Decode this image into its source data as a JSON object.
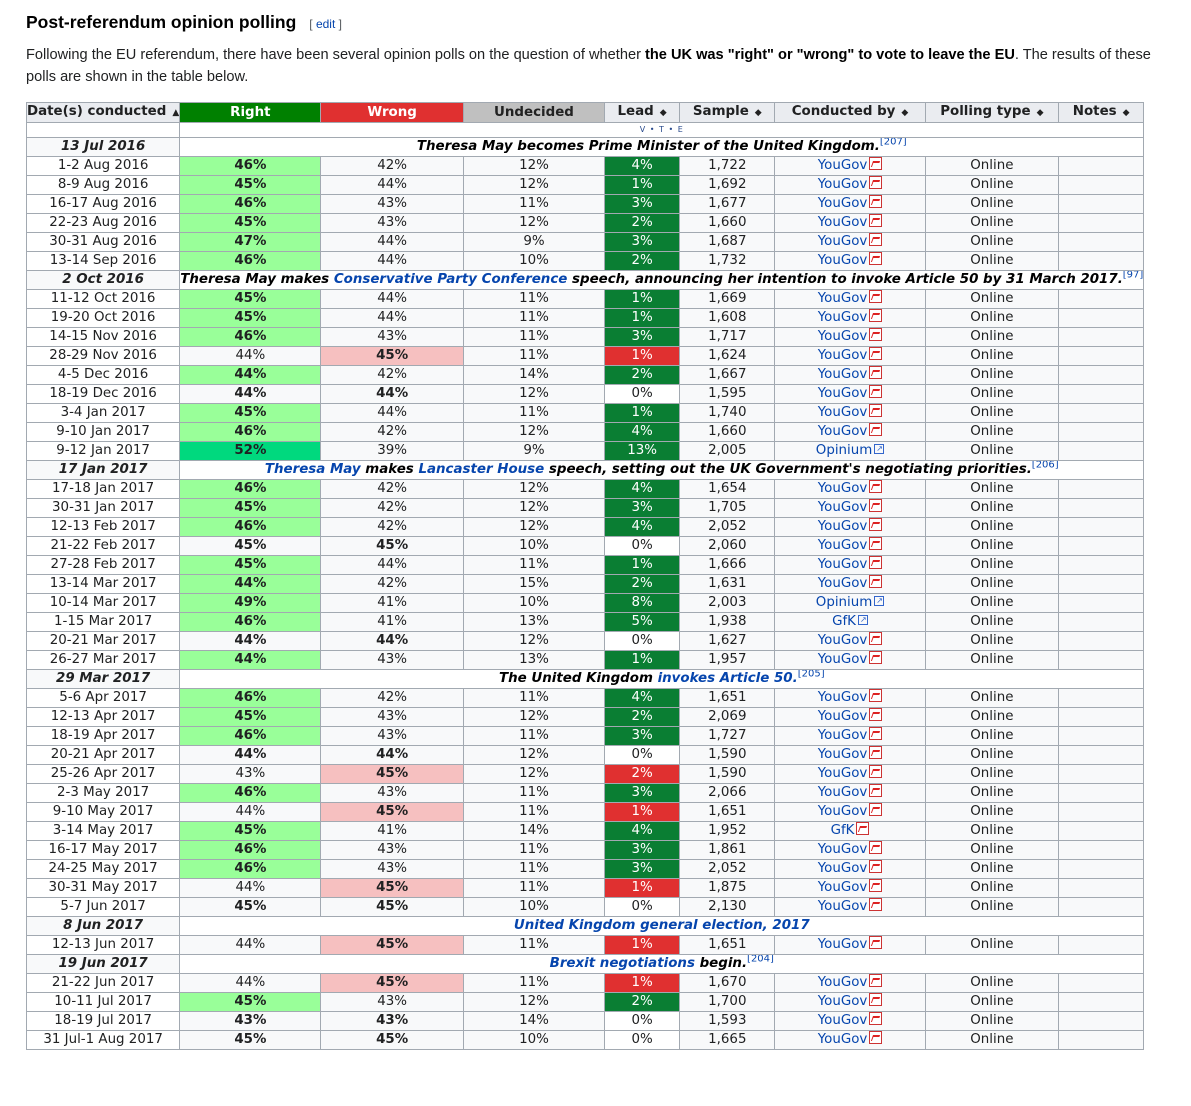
{
  "section": {
    "title": "Post-referendum opinion polling",
    "edit_label": "edit",
    "intro_pre": "Following the EU referendum, there have been several opinion polls on the question of whether ",
    "intro_bold": "the UK was \"right\" or \"wrong\" to vote to leave the EU",
    "intro_post": ". The results of these polls are shown in the table below."
  },
  "table": {
    "headers": [
      "Date(s) conducted",
      "Right",
      "Wrong",
      "Undecided",
      "Lead",
      "Sample",
      "Conducted by",
      "Polling type",
      "Notes"
    ],
    "vte": "V • T • E",
    "colors": {
      "right": "#008000",
      "wrong": "#e03030",
      "undecided": "#c0c0c0",
      "light_green": "#99ff99",
      "bright_green": "#00d97e",
      "pink": "#f6c0c0",
      "lead_green": "#0a7e33",
      "lead_red": "#e03030"
    },
    "rows": [
      {
        "type": "event",
        "date": "13 Jul 2016",
        "parts": [
          [
            "t",
            "Theresa May becomes Prime Minister of the United Kingdom."
          ],
          [
            "r",
            "[207]"
          ]
        ]
      },
      {
        "type": "poll",
        "date": "1-2 Aug 2016",
        "right": "46%",
        "wrong": "42%",
        "undecided": "12%",
        "lead": "4%",
        "sample": "1,722",
        "by": "YouGov",
        "icon": "pdf",
        "ptype": "Online",
        "notes": "",
        "rc": "lg",
        "wc": "",
        "lc": "lw"
      },
      {
        "type": "poll",
        "date": "8-9 Aug 2016",
        "right": "45%",
        "wrong": "44%",
        "undecided": "12%",
        "lead": "1%",
        "sample": "1,692",
        "by": "YouGov",
        "icon": "pdf",
        "ptype": "Online",
        "notes": "",
        "rc": "lg",
        "wc": "",
        "lc": "lw"
      },
      {
        "type": "poll",
        "date": "16-17 Aug 2016",
        "right": "46%",
        "wrong": "43%",
        "undecided": "11%",
        "lead": "3%",
        "sample": "1,677",
        "by": "YouGov",
        "icon": "pdf",
        "ptype": "Online",
        "notes": "",
        "rc": "lg",
        "wc": "",
        "lc": "lw"
      },
      {
        "type": "poll",
        "date": "22-23 Aug 2016",
        "right": "45%",
        "wrong": "43%",
        "undecided": "12%",
        "lead": "2%",
        "sample": "1,660",
        "by": "YouGov",
        "icon": "pdf",
        "ptype": "Online",
        "notes": "",
        "rc": "lg",
        "wc": "",
        "lc": "lw"
      },
      {
        "type": "poll",
        "date": "30-31 Aug 2016",
        "right": "47%",
        "wrong": "44%",
        "undecided": "9%",
        "lead": "3%",
        "sample": "1,687",
        "by": "YouGov",
        "icon": "pdf",
        "ptype": "Online",
        "notes": "",
        "rc": "lg",
        "wc": "",
        "lc": "lw"
      },
      {
        "type": "poll",
        "date": "13-14 Sep 2016",
        "right": "46%",
        "wrong": "44%",
        "undecided": "10%",
        "lead": "2%",
        "sample": "1,732",
        "by": "YouGov",
        "icon": "pdf",
        "ptype": "Online",
        "notes": "",
        "rc": "lg",
        "wc": "",
        "lc": "lw"
      },
      {
        "type": "event",
        "tall": true,
        "date": "2 Oct 2016",
        "parts": [
          [
            "t",
            "Theresa May makes "
          ],
          [
            "l",
            "Conservative Party Conference"
          ],
          [
            "t",
            " speech, announcing her intention to invoke Article 50 by 31 March 2017."
          ],
          [
            "r",
            "[97]"
          ]
        ]
      },
      {
        "type": "poll",
        "date": "11-12 Oct 2016",
        "right": "45%",
        "wrong": "44%",
        "undecided": "11%",
        "lead": "1%",
        "sample": "1,669",
        "by": "YouGov",
        "icon": "pdf",
        "ptype": "Online",
        "notes": "",
        "rc": "lg",
        "wc": "",
        "lc": "lw"
      },
      {
        "type": "poll",
        "date": "19-20 Oct 2016",
        "right": "45%",
        "wrong": "44%",
        "undecided": "11%",
        "lead": "1%",
        "sample": "1,608",
        "by": "YouGov",
        "icon": "pdf",
        "ptype": "Online",
        "notes": "",
        "rc": "lg",
        "wc": "",
        "lc": "lw"
      },
      {
        "type": "poll",
        "date": "14-15 Nov 2016",
        "right": "46%",
        "wrong": "43%",
        "undecided": "11%",
        "lead": "3%",
        "sample": "1,717",
        "by": "YouGov",
        "icon": "pdf",
        "ptype": "Online",
        "notes": "",
        "rc": "lg",
        "wc": "",
        "lc": "lw"
      },
      {
        "type": "poll",
        "date": "28-29 Nov 2016",
        "right": "44%",
        "wrong": "45%",
        "undecided": "11%",
        "lead": "1%",
        "sample": "1,624",
        "by": "YouGov",
        "icon": "pdf",
        "ptype": "Online",
        "notes": "",
        "rc": "",
        "wc": "pk",
        "lc": "lr"
      },
      {
        "type": "poll",
        "date": "4-5 Dec 2016",
        "right": "44%",
        "wrong": "42%",
        "undecided": "14%",
        "lead": "2%",
        "sample": "1,667",
        "by": "YouGov",
        "icon": "pdf",
        "ptype": "Online",
        "notes": "",
        "rc": "lg",
        "wc": "",
        "lc": "lw"
      },
      {
        "type": "poll",
        "date": "18-19 Dec 2016",
        "right": "44%",
        "wrong": "44%",
        "undecided": "12%",
        "lead": "0%",
        "sample": "1,595",
        "by": "YouGov",
        "icon": "pdf",
        "ptype": "Online",
        "notes": "",
        "rc": "bd",
        "wc": "bd",
        "lc": "ln"
      },
      {
        "type": "poll",
        "date": "3-4 Jan 2017",
        "right": "45%",
        "wrong": "44%",
        "undecided": "11%",
        "lead": "1%",
        "sample": "1,740",
        "by": "YouGov",
        "icon": "pdf",
        "ptype": "Online",
        "notes": "",
        "rc": "lg",
        "wc": "",
        "lc": "lw"
      },
      {
        "type": "poll",
        "date": "9-10 Jan 2017",
        "right": "46%",
        "wrong": "42%",
        "undecided": "12%",
        "lead": "4%",
        "sample": "1,660",
        "by": "YouGov",
        "icon": "pdf",
        "ptype": "Online",
        "notes": "",
        "rc": "lg",
        "wc": "",
        "lc": "lw"
      },
      {
        "type": "poll",
        "date": "9-12 Jan 2017",
        "right": "52%",
        "wrong": "39%",
        "undecided": "9%",
        "lead": "13%",
        "sample": "2,005",
        "by": "Opinium",
        "icon": "ext",
        "ptype": "Online",
        "notes": "",
        "rc": "dg",
        "wc": "",
        "lc": "lw"
      },
      {
        "type": "event",
        "date": "17 Jan 2017",
        "parts": [
          [
            "l",
            "Theresa May"
          ],
          [
            "t",
            " makes "
          ],
          [
            "l",
            "Lancaster House"
          ],
          [
            "t",
            " speech, setting out the UK Government's negotiating priorities."
          ],
          [
            "r",
            "[206]"
          ]
        ]
      },
      {
        "type": "poll",
        "date": "17-18 Jan 2017",
        "right": "46%",
        "wrong": "42%",
        "undecided": "12%",
        "lead": "4%",
        "sample": "1,654",
        "by": "YouGov",
        "icon": "pdf",
        "ptype": "Online",
        "notes": "",
        "rc": "lg",
        "wc": "",
        "lc": "lw"
      },
      {
        "type": "poll",
        "date": "30-31 Jan 2017",
        "right": "45%",
        "wrong": "42%",
        "undecided": "12%",
        "lead": "3%",
        "sample": "1,705",
        "by": "YouGov",
        "icon": "pdf",
        "ptype": "Online",
        "notes": "",
        "rc": "lg",
        "wc": "",
        "lc": "lw"
      },
      {
        "type": "poll",
        "date": "12-13 Feb 2017",
        "right": "46%",
        "wrong": "42%",
        "undecided": "12%",
        "lead": "4%",
        "sample": "2,052",
        "by": "YouGov",
        "icon": "pdf",
        "ptype": "Online",
        "notes": "",
        "rc": "lg",
        "wc": "",
        "lc": "lw"
      },
      {
        "type": "poll",
        "date": "21-22 Feb 2017",
        "right": "45%",
        "wrong": "45%",
        "undecided": "10%",
        "lead": "0%",
        "sample": "2,060",
        "by": "YouGov",
        "icon": "pdf",
        "ptype": "Online",
        "notes": "",
        "rc": "bd",
        "wc": "bd",
        "lc": "ln"
      },
      {
        "type": "poll",
        "date": "27-28 Feb 2017",
        "right": "45%",
        "wrong": "44%",
        "undecided": "11%",
        "lead": "1%",
        "sample": "1,666",
        "by": "YouGov",
        "icon": "pdf",
        "ptype": "Online",
        "notes": "",
        "rc": "lg",
        "wc": "",
        "lc": "lw"
      },
      {
        "type": "poll",
        "date": "13-14 Mar 2017",
        "right": "44%",
        "wrong": "42%",
        "undecided": "15%",
        "lead": "2%",
        "sample": "1,631",
        "by": "YouGov",
        "icon": "pdf",
        "ptype": "Online",
        "notes": "",
        "rc": "lg",
        "wc": "",
        "lc": "lw"
      },
      {
        "type": "poll",
        "date": "10-14 Mar 2017",
        "right": "49%",
        "wrong": "41%",
        "undecided": "10%",
        "lead": "8%",
        "sample": "2,003",
        "by": "Opinium",
        "icon": "ext",
        "ptype": "Online",
        "notes": "",
        "rc": "lg",
        "wc": "",
        "lc": "lw"
      },
      {
        "type": "poll",
        "date": "1-15 Mar 2017",
        "right": "46%",
        "wrong": "41%",
        "undecided": "13%",
        "lead": "5%",
        "sample": "1,938",
        "by": "GfK",
        "icon": "ext",
        "ptype": "Online",
        "notes": "",
        "rc": "lg",
        "wc": "",
        "lc": "lw"
      },
      {
        "type": "poll",
        "date": "20-21 Mar 2017",
        "right": "44%",
        "wrong": "44%",
        "undecided": "12%",
        "lead": "0%",
        "sample": "1,627",
        "by": "YouGov",
        "icon": "pdf",
        "ptype": "Online",
        "notes": "",
        "rc": "bd",
        "wc": "bd",
        "lc": "ln"
      },
      {
        "type": "poll",
        "date": "26-27 Mar 2017",
        "right": "44%",
        "wrong": "43%",
        "undecided": "13%",
        "lead": "1%",
        "sample": "1,957",
        "by": "YouGov",
        "icon": "pdf",
        "ptype": "Online",
        "notes": "",
        "rc": "lg",
        "wc": "",
        "lc": "lw"
      },
      {
        "type": "event",
        "date": "29 Mar 2017",
        "parts": [
          [
            "t",
            "The United Kingdom "
          ],
          [
            "l",
            "invokes Article 50."
          ],
          [
            "r",
            "[205]"
          ]
        ]
      },
      {
        "type": "poll",
        "date": "5-6 Apr 2017",
        "right": "46%",
        "wrong": "42%",
        "undecided": "11%",
        "lead": "4%",
        "sample": "1,651",
        "by": "YouGov",
        "icon": "pdf",
        "ptype": "Online",
        "notes": "",
        "rc": "lg",
        "wc": "",
        "lc": "lw"
      },
      {
        "type": "poll",
        "date": "12-13 Apr 2017",
        "right": "45%",
        "wrong": "43%",
        "undecided": "12%",
        "lead": "2%",
        "sample": "2,069",
        "by": "YouGov",
        "icon": "pdf",
        "ptype": "Online",
        "notes": "",
        "rc": "lg",
        "wc": "",
        "lc": "lw"
      },
      {
        "type": "poll",
        "date": "18-19 Apr 2017",
        "right": "46%",
        "wrong": "43%",
        "undecided": "11%",
        "lead": "3%",
        "sample": "1,727",
        "by": "YouGov",
        "icon": "pdf",
        "ptype": "Online",
        "notes": "",
        "rc": "lg",
        "wc": "",
        "lc": "lw"
      },
      {
        "type": "poll",
        "date": "20-21 Apr 2017",
        "right": "44%",
        "wrong": "44%",
        "undecided": "12%",
        "lead": "0%",
        "sample": "1,590",
        "by": "YouGov",
        "icon": "pdf",
        "ptype": "Online",
        "notes": "",
        "rc": "bd",
        "wc": "bd",
        "lc": "ln"
      },
      {
        "type": "poll",
        "date": "25-26 Apr 2017",
        "right": "43%",
        "wrong": "45%",
        "undecided": "12%",
        "lead": "2%",
        "sample": "1,590",
        "by": "YouGov",
        "icon": "pdf",
        "ptype": "Online",
        "notes": "",
        "rc": "",
        "wc": "pk",
        "lc": "lr"
      },
      {
        "type": "poll",
        "date": "2-3 May 2017",
        "right": "46%",
        "wrong": "43%",
        "undecided": "11%",
        "lead": "3%",
        "sample": "2,066",
        "by": "YouGov",
        "icon": "pdf",
        "ptype": "Online",
        "notes": "",
        "rc": "lg",
        "wc": "",
        "lc": "lw"
      },
      {
        "type": "poll",
        "date": "9-10 May 2017",
        "right": "44%",
        "wrong": "45%",
        "undecided": "11%",
        "lead": "1%",
        "sample": "1,651",
        "by": "YouGov",
        "icon": "pdf",
        "ptype": "Online",
        "notes": "",
        "rc": "",
        "wc": "pk",
        "lc": "lr"
      },
      {
        "type": "poll",
        "date": "3-14 May 2017",
        "right": "45%",
        "wrong": "41%",
        "undecided": "14%",
        "lead": "4%",
        "sample": "1,952",
        "by": "GfK",
        "icon": "pdf",
        "ptype": "Online",
        "notes": "",
        "rc": "lg",
        "wc": "",
        "lc": "lw"
      },
      {
        "type": "poll",
        "date": "16-17 May 2017",
        "right": "46%",
        "wrong": "43%",
        "undecided": "11%",
        "lead": "3%",
        "sample": "1,861",
        "by": "YouGov",
        "icon": "pdf",
        "ptype": "Online",
        "notes": "",
        "rc": "lg",
        "wc": "",
        "lc": "lw"
      },
      {
        "type": "poll",
        "date": "24-25 May 2017",
        "right": "46%",
        "wrong": "43%",
        "undecided": "11%",
        "lead": "3%",
        "sample": "2,052",
        "by": "YouGov",
        "icon": "pdf",
        "ptype": "Online",
        "notes": "",
        "rc": "lg",
        "wc": "",
        "lc": "lw"
      },
      {
        "type": "poll",
        "date": "30-31 May 2017",
        "right": "44%",
        "wrong": "45%",
        "undecided": "11%",
        "lead": "1%",
        "sample": "1,875",
        "by": "YouGov",
        "icon": "pdf",
        "ptype": "Online",
        "notes": "",
        "rc": "",
        "wc": "pk",
        "lc": "lr"
      },
      {
        "type": "poll",
        "date": "5-7 Jun 2017",
        "right": "45%",
        "wrong": "45%",
        "undecided": "10%",
        "lead": "0%",
        "sample": "2,130",
        "by": "YouGov",
        "icon": "pdf",
        "ptype": "Online",
        "notes": "",
        "rc": "bd",
        "wc": "bd",
        "lc": "ln"
      },
      {
        "type": "event",
        "date": "8 Jun 2017",
        "parts": [
          [
            "l",
            "United Kingdom general election, 2017"
          ]
        ]
      },
      {
        "type": "poll",
        "date": "12-13 Jun 2017",
        "right": "44%",
        "wrong": "45%",
        "undecided": "11%",
        "lead": "1%",
        "sample": "1,651",
        "by": "YouGov",
        "icon": "pdf",
        "ptype": "Online",
        "notes": "",
        "rc": "",
        "wc": "pk",
        "lc": "lr"
      },
      {
        "type": "event",
        "date": "19 Jun 2017",
        "parts": [
          [
            "l",
            "Brexit negotiations"
          ],
          [
            "t",
            " begin."
          ],
          [
            "r",
            "[204]"
          ]
        ]
      },
      {
        "type": "poll",
        "date": "21-22 Jun 2017",
        "right": "44%",
        "wrong": "45%",
        "undecided": "11%",
        "lead": "1%",
        "sample": "1,670",
        "by": "YouGov",
        "icon": "pdf",
        "ptype": "Online",
        "notes": "",
        "rc": "",
        "wc": "pk",
        "lc": "lr"
      },
      {
        "type": "poll",
        "date": "10-11 Jul 2017",
        "right": "45%",
        "wrong": "43%",
        "undecided": "12%",
        "lead": "2%",
        "sample": "1,700",
        "by": "YouGov",
        "icon": "pdf",
        "ptype": "Online",
        "notes": "",
        "rc": "lg",
        "wc": "",
        "lc": "lw"
      },
      {
        "type": "poll",
        "date": "18-19 Jul 2017",
        "right": "43%",
        "wrong": "43%",
        "undecided": "14%",
        "lead": "0%",
        "sample": "1,593",
        "by": "YouGov",
        "icon": "pdf",
        "ptype": "Online",
        "notes": "",
        "rc": "bd",
        "wc": "bd",
        "lc": "ln"
      },
      {
        "type": "poll",
        "date": "31 Jul-1 Aug 2017",
        "right": "45%",
        "wrong": "45%",
        "undecided": "10%",
        "lead": "0%",
        "sample": "1,665",
        "by": "YouGov",
        "icon": "pdf",
        "ptype": "Online",
        "notes": "",
        "rc": "bd",
        "wc": "bd",
        "lc": "ln"
      }
    ]
  }
}
